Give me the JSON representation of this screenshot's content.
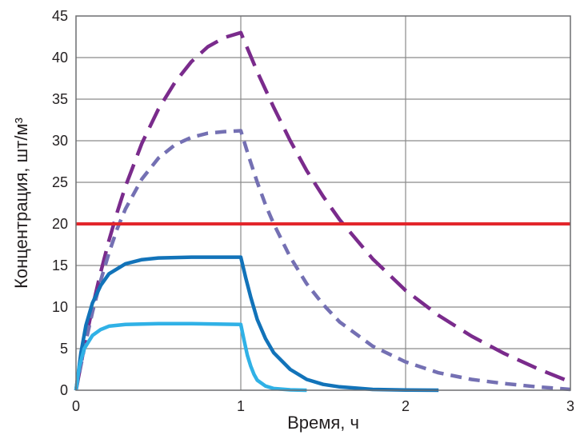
{
  "chart_data": {
    "type": "line",
    "xlabel": "Время, ч",
    "ylabel": "Концентрация, шт/м³",
    "xlim": [
      0,
      3
    ],
    "ylim": [
      0,
      45
    ],
    "x_ticks": [
      "0",
      "1",
      "2",
      "3"
    ],
    "y_ticks": [
      "0",
      "5",
      "10",
      "15",
      "20",
      "25",
      "30",
      "35",
      "40",
      "45"
    ],
    "grid": true,
    "legend": "none",
    "threshold": {
      "y": 20,
      "color": "#e3262b"
    },
    "series": [
      {
        "color": "#7a2b8c",
        "dash": "long-dash",
        "points": [
          [
            0,
            0
          ],
          [
            0.05,
            5.2
          ],
          [
            0.1,
            10.0
          ],
          [
            0.15,
            14.2
          ],
          [
            0.2,
            18.0
          ],
          [
            0.25,
            21.4
          ],
          [
            0.3,
            24.5
          ],
          [
            0.4,
            29.7
          ],
          [
            0.5,
            33.8
          ],
          [
            0.6,
            37.0
          ],
          [
            0.7,
            39.5
          ],
          [
            0.8,
            41.3
          ],
          [
            0.9,
            42.4
          ],
          [
            1.0,
            43.0
          ],
          [
            1.1,
            38.3
          ],
          [
            1.2,
            34.0
          ],
          [
            1.3,
            30.0
          ],
          [
            1.4,
            26.4
          ],
          [
            1.5,
            23.3
          ],
          [
            1.6,
            20.5
          ],
          [
            1.8,
            15.8
          ],
          [
            2.0,
            12.0
          ],
          [
            2.2,
            9.0
          ],
          [
            2.4,
            6.5
          ],
          [
            2.6,
            4.4
          ],
          [
            2.8,
            2.6
          ],
          [
            3.0,
            1.0
          ]
        ]
      },
      {
        "color": "#7470b3",
        "dash": "short-dash",
        "points": [
          [
            0,
            0
          ],
          [
            0.05,
            5.0
          ],
          [
            0.1,
            9.4
          ],
          [
            0.15,
            13.2
          ],
          [
            0.2,
            16.5
          ],
          [
            0.25,
            19.4
          ],
          [
            0.3,
            21.8
          ],
          [
            0.4,
            25.4
          ],
          [
            0.5,
            27.9
          ],
          [
            0.6,
            29.5
          ],
          [
            0.7,
            30.4
          ],
          [
            0.8,
            30.9
          ],
          [
            0.9,
            31.1
          ],
          [
            1.0,
            31.2
          ],
          [
            1.05,
            28.0
          ],
          [
            1.1,
            25.0
          ],
          [
            1.15,
            22.3
          ],
          [
            1.2,
            20.0
          ],
          [
            1.3,
            16.0
          ],
          [
            1.4,
            12.8
          ],
          [
            1.5,
            10.3
          ],
          [
            1.6,
            8.2
          ],
          [
            1.8,
            5.3
          ],
          [
            2.0,
            3.4
          ],
          [
            2.2,
            2.1
          ],
          [
            2.4,
            1.3
          ],
          [
            2.6,
            0.8
          ],
          [
            2.8,
            0.4
          ],
          [
            3.0,
            0.1
          ]
        ]
      },
      {
        "color": "#1273b9",
        "dash": "solid",
        "points": [
          [
            0,
            0
          ],
          [
            0.03,
            4.5
          ],
          [
            0.06,
            7.8
          ],
          [
            0.1,
            10.5
          ],
          [
            0.15,
            12.6
          ],
          [
            0.2,
            14.0
          ],
          [
            0.3,
            15.2
          ],
          [
            0.4,
            15.7
          ],
          [
            0.5,
            15.9
          ],
          [
            0.7,
            16.0
          ],
          [
            1.0,
            16.0
          ],
          [
            1.03,
            13.5
          ],
          [
            1.06,
            11.2
          ],
          [
            1.1,
            8.5
          ],
          [
            1.15,
            6.2
          ],
          [
            1.2,
            4.5
          ],
          [
            1.3,
            2.5
          ],
          [
            1.4,
            1.3
          ],
          [
            1.5,
            0.7
          ],
          [
            1.6,
            0.4
          ],
          [
            1.8,
            0.1
          ],
          [
            2.0,
            0.03
          ],
          [
            2.2,
            0.0
          ]
        ]
      },
      {
        "color": "#30b1e6",
        "dash": "solid",
        "points": [
          [
            0,
            0
          ],
          [
            0.02,
            2.8
          ],
          [
            0.05,
            5.0
          ],
          [
            0.1,
            6.6
          ],
          [
            0.15,
            7.3
          ],
          [
            0.2,
            7.7
          ],
          [
            0.3,
            7.9
          ],
          [
            0.5,
            8.0
          ],
          [
            0.7,
            8.0
          ],
          [
            1.0,
            7.9
          ],
          [
            1.02,
            6.0
          ],
          [
            1.04,
            4.2
          ],
          [
            1.06,
            2.9
          ],
          [
            1.08,
            1.9
          ],
          [
            1.1,
            1.2
          ],
          [
            1.15,
            0.5
          ],
          [
            1.2,
            0.2
          ],
          [
            1.3,
            0.05
          ],
          [
            1.4,
            0.0
          ]
        ]
      }
    ]
  }
}
